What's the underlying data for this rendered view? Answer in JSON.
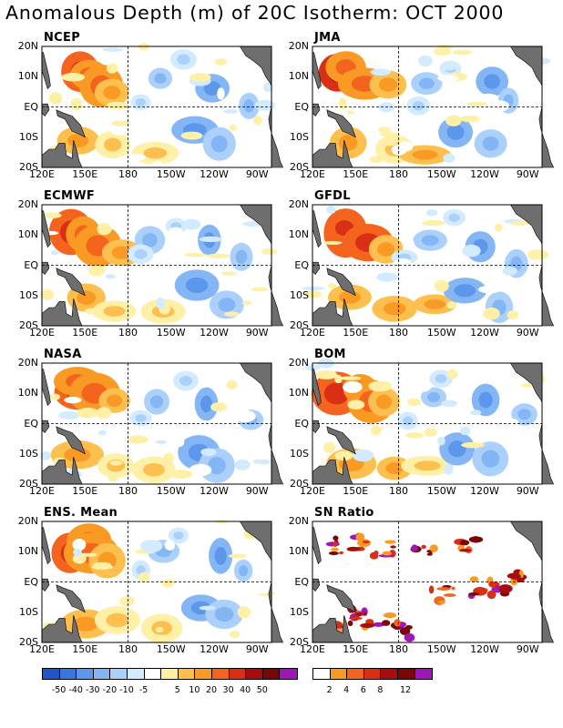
{
  "title": "Anomalous Depth (m) of 20C Isotherm: OCT 2000",
  "axes": {
    "lat_labels": [
      "20N",
      "10N",
      "EQ",
      "10S",
      "20S"
    ],
    "lon_labels": [
      "120E",
      "150E",
      "180",
      "150W",
      "120W",
      "90W"
    ]
  },
  "colors": {
    "land": "#6e6e6e",
    "anomaly_swatches": [
      "#1f55c8",
      "#3a77dc",
      "#5c97ec",
      "#84b6f6",
      "#aad0fb",
      "#d2ebff",
      "#ffffff",
      "#fff0a8",
      "#fdc04e",
      "#f99a24",
      "#f4641e",
      "#d92f14",
      "#a80d0d",
      "#7c0505",
      "#9c16b8"
    ],
    "sn_swatches": [
      "#ffffff",
      "#f99a24",
      "#f4641e",
      "#d92f14",
      "#a80d0d",
      "#7c0505",
      "#9c16b8"
    ]
  },
  "chart_data": [
    {
      "type": "heatmap",
      "title": "NCEP",
      "variable": "20C isotherm depth anomaly",
      "units": "m",
      "lat_range": [
        "20S",
        "20N"
      ],
      "lon_range": [
        "120E",
        "80W"
      ]
    },
    {
      "type": "heatmap",
      "title": "JMA",
      "variable": "20C isotherm depth anomaly",
      "units": "m",
      "lat_range": [
        "20S",
        "20N"
      ],
      "lon_range": [
        "120E",
        "80W"
      ]
    },
    {
      "type": "heatmap",
      "title": "ECMWF",
      "variable": "20C isotherm depth anomaly",
      "units": "m",
      "lat_range": [
        "20S",
        "20N"
      ],
      "lon_range": [
        "120E",
        "80W"
      ]
    },
    {
      "type": "heatmap",
      "title": "GFDL",
      "variable": "20C isotherm depth anomaly",
      "units": "m",
      "lat_range": [
        "20S",
        "20N"
      ],
      "lon_range": [
        "120E",
        "80W"
      ]
    },
    {
      "type": "heatmap",
      "title": "NASA",
      "variable": "20C isotherm depth anomaly",
      "units": "m",
      "lat_range": [
        "20S",
        "20N"
      ],
      "lon_range": [
        "120E",
        "80W"
      ]
    },
    {
      "type": "heatmap",
      "title": "BOM",
      "variable": "20C isotherm depth anomaly",
      "units": "m",
      "lat_range": [
        "20S",
        "20N"
      ],
      "lon_range": [
        "120E",
        "80W"
      ]
    },
    {
      "type": "heatmap",
      "title": "ENS. Mean",
      "variable": "20C isotherm depth anomaly",
      "units": "m",
      "lat_range": [
        "20S",
        "20N"
      ],
      "lon_range": [
        "120E",
        "80W"
      ]
    },
    {
      "type": "heatmap",
      "title": "SN Ratio",
      "variable": "signal to noise ratio",
      "lat_range": [
        "20S",
        "20N"
      ],
      "lon_range": [
        "120E",
        "80W"
      ]
    }
  ],
  "legend": {
    "anomaly_ticks": [
      "-50",
      "-40",
      "-30",
      "-20",
      "-10",
      "-5",
      "5",
      "10",
      "20",
      "30",
      "40",
      "50"
    ],
    "sn_ticks": [
      "2",
      "4",
      "6",
      "8",
      "12"
    ]
  }
}
